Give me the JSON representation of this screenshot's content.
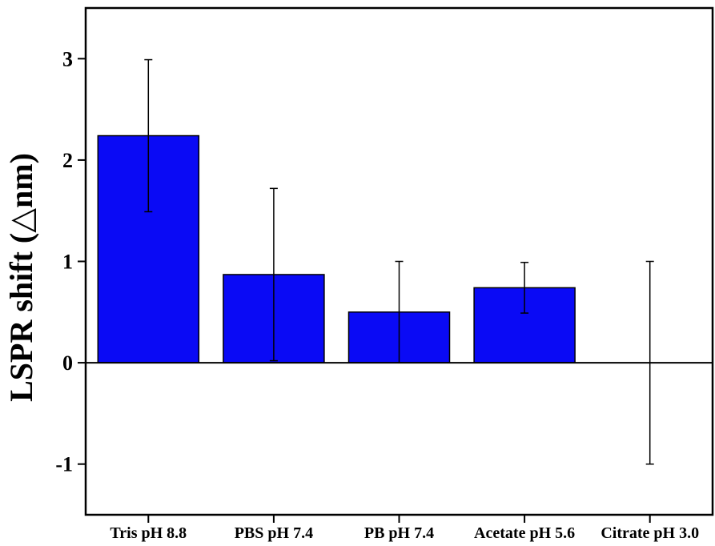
{
  "chart_data": {
    "type": "bar",
    "title": "",
    "xlabel": "",
    "ylabel": "LSPR shift (△nm)",
    "categories": [
      "Tris pH 8.8",
      "PBS pH 7.4",
      "PB pH 7.4",
      "Acetate pH 5.6",
      "Citrate pH 3.0"
    ],
    "values": [
      2.24,
      0.87,
      0.5,
      0.74,
      0.0
    ],
    "errors": [
      0.75,
      0.85,
      0.5,
      0.25,
      1.0
    ],
    "ylim": [
      -1.5,
      3.5
    ],
    "yticks": [
      -1,
      0,
      1,
      2,
      3
    ],
    "ytick_labels": [
      "-1",
      "0",
      "1",
      "2",
      "3"
    ],
    "zero_line": true,
    "grid": false,
    "legend": "none",
    "colors": {
      "bar_fill": "#0a0af5",
      "bar_stroke": "#000000",
      "axis": "#000000"
    }
  }
}
